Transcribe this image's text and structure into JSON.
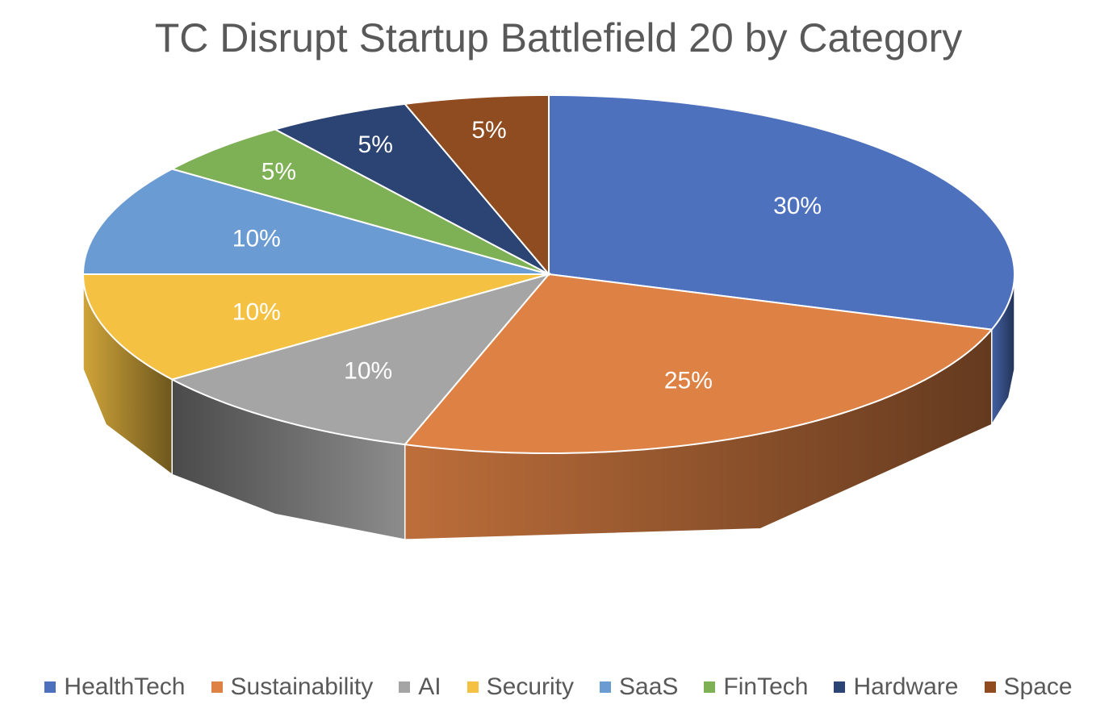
{
  "chart_data": {
    "type": "pie",
    "title": "TC Disrupt Startup Battlefield 20 by Category",
    "categories": [
      "HealthTech",
      "Sustainability",
      "AI",
      "Security",
      "SaaS",
      "FinTech",
      "Hardware",
      "Space"
    ],
    "values": [
      30,
      25,
      10,
      10,
      10,
      5,
      5,
      5
    ],
    "data_labels": [
      "30%",
      "25%",
      "10%",
      "10%",
      "10%",
      "5%",
      "5%",
      "5%"
    ],
    "colors": [
      "#4e71be",
      "#de8144",
      "#a5a5a5",
      "#f4c143",
      "#6a9bd3",
      "#7eb055",
      "#2c4473",
      "#904c21"
    ],
    "style": "3d",
    "legend": "bottom"
  }
}
